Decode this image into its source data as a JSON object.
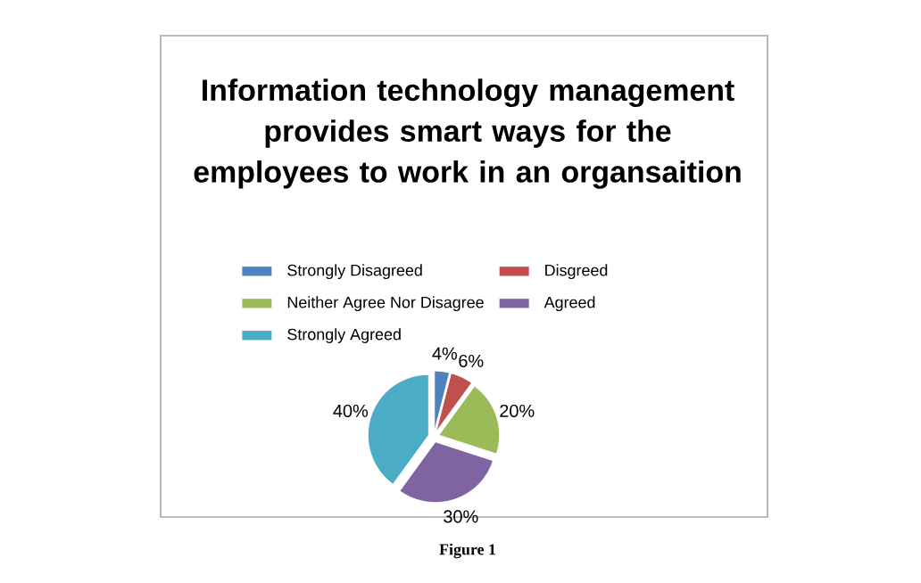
{
  "chart_data": {
    "type": "pie",
    "title": "Information technology management provides smart ways for the employees to work in an organsaition",
    "categories": [
      "Strongly Disagreed",
      "Disgreed",
      "Neither Agree Nor Disagree",
      "Agreed",
      "Strongly Agreed"
    ],
    "values": [
      4,
      6,
      20,
      30,
      40
    ],
    "colors": [
      "#4f81bd",
      "#c0504d",
      "#9bbb59",
      "#8064a2",
      "#4bacc6"
    ],
    "value_labels": [
      "4%",
      "6%",
      "20%",
      "30%",
      "40%"
    ],
    "legend": "top",
    "annotations": [
      "Figure 1"
    ]
  }
}
